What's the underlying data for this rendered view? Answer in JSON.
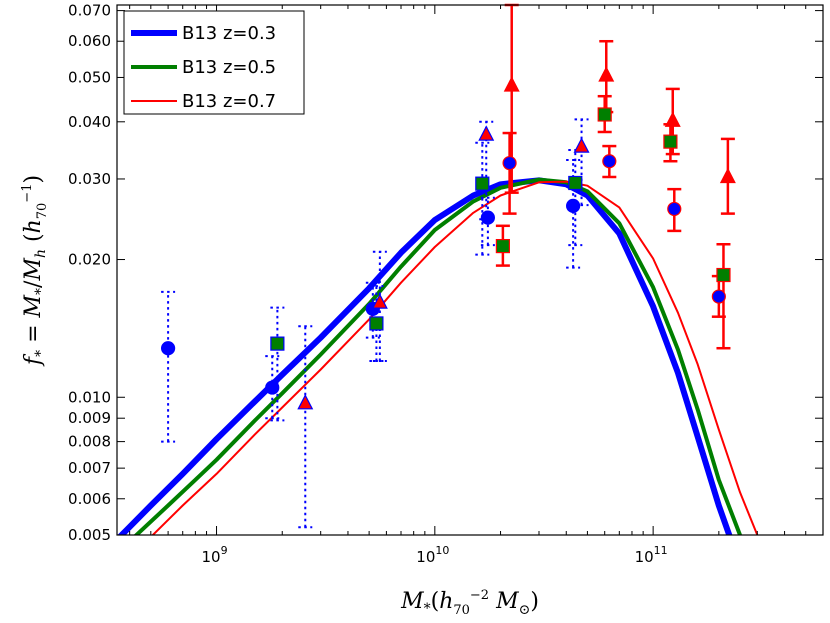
{
  "chart_data": {
    "type": "scatter",
    "title": "",
    "xlabel": "M_*(h_70^-2 M_⊙)",
    "ylabel": "f_* = M_*/M_h (h_70^-1)",
    "x_scale": "log",
    "y_scale": "log",
    "xlim": [
      350000000.0,
      600000000000.0
    ],
    "ylim": [
      0.005,
      0.072
    ],
    "x_ticks": [
      {
        "value": 1000000000.0,
        "base": "10",
        "exp": "9"
      },
      {
        "value": 10000000000.0,
        "base": "10",
        "exp": "10"
      },
      {
        "value": 100000000000.0,
        "base": "10",
        "exp": "11"
      }
    ],
    "y_ticks": [
      {
        "value": 0.005,
        "label": "0.005"
      },
      {
        "value": 0.006,
        "label": "0.006"
      },
      {
        "value": 0.007,
        "label": "0.007"
      },
      {
        "value": 0.008,
        "label": "0.008"
      },
      {
        "value": 0.009,
        "label": "0.009"
      },
      {
        "value": 0.01,
        "label": "0.010"
      },
      {
        "value": 0.02,
        "label": "0.020"
      },
      {
        "value": 0.03,
        "label": "0.030"
      },
      {
        "value": 0.04,
        "label": "0.040"
      },
      {
        "value": 0.05,
        "label": "0.050"
      },
      {
        "value": 0.06,
        "label": "0.060"
      },
      {
        "value": 0.07,
        "label": "0.070"
      }
    ],
    "legend": {
      "location": "upper-left",
      "entries": [
        {
          "label": "B13 z=0.3",
          "color": "#0000ff"
        },
        {
          "label": "B13 z=0.5",
          "color": "#007f00"
        },
        {
          "label": "B13 z=0.7",
          "color": "#ff0000"
        }
      ]
    },
    "model_curves": [
      {
        "name": "B13 z=0.3",
        "color": "#0000ff",
        "x": [
          360000000.0,
          500000000.0,
          700000000.0,
          1000000000.0,
          1500000000.0,
          2000000000.0,
          3000000000.0,
          5000000000.0,
          7000000000.0,
          10000000000.0,
          15000000000.0,
          20000000000.0,
          30000000000.0,
          40000000000.0,
          50000000000.0,
          70000000000.0,
          100000000000.0,
          130000000000.0,
          160000000000.0,
          200000000000.0,
          230000000000.0
        ],
        "y": [
          0.00495,
          0.0058,
          0.0068,
          0.0081,
          0.0098,
          0.0112,
          0.0135,
          0.0173,
          0.0207,
          0.0244,
          0.0276,
          0.0292,
          0.0298,
          0.0292,
          0.0276,
          0.0228,
          0.0158,
          0.0113,
          0.0082,
          0.0058,
          0.0048
        ]
      },
      {
        "name": "B13 z=0.5",
        "color": "#007f00",
        "x": [
          420000000.0,
          600000000.0,
          800000000.0,
          1000000000.0,
          1500000000.0,
          2000000000.0,
          3000000000.0,
          5000000000.0,
          7000000000.0,
          10000000000.0,
          15000000000.0,
          20000000000.0,
          30000000000.0,
          40000000000.0,
          50000000000.0,
          70000000000.0,
          100000000000.0,
          130000000000.0,
          160000000000.0,
          200000000000.0,
          250000000000.0,
          270000000000.0
        ],
        "y": [
          0.00495,
          0.0058,
          0.0066,
          0.0073,
          0.0089,
          0.0102,
          0.0124,
          0.016,
          0.0193,
          0.0232,
          0.0268,
          0.0287,
          0.0299,
          0.0295,
          0.0282,
          0.024,
          0.0174,
          0.0127,
          0.0094,
          0.0066,
          0.005,
          0.0046
        ]
      },
      {
        "name": "B13 z=0.7",
        "color": "#ff0000",
        "x": [
          500000000.0,
          700000000.0,
          1000000000.0,
          1500000000.0,
          2000000000.0,
          3000000000.0,
          5000000000.0,
          7000000000.0,
          10000000000.0,
          15000000000.0,
          20000000000.0,
          30000000000.0,
          40000000000.0,
          50000000000.0,
          70000000000.0,
          100000000000.0,
          130000000000.0,
          160000000000.0,
          200000000000.0,
          250000000000.0,
          300000000000.0,
          320000000000.0
        ],
        "y": [
          0.00495,
          0.0058,
          0.0068,
          0.0083,
          0.0095,
          0.0115,
          0.0148,
          0.0178,
          0.0213,
          0.0253,
          0.0276,
          0.0295,
          0.0296,
          0.029,
          0.026,
          0.0201,
          0.0153,
          0.0118,
          0.0085,
          0.0062,
          0.005,
          0.0046
        ]
      }
    ],
    "data_points": [
      {
        "marker": "circle",
        "face": "#0000ff",
        "edge": "#0000ff",
        "errstyle": "dotted",
        "errcolor": "#0000ff",
        "x": 600000000.0,
        "y": 0.0128,
        "ylo": 0.008,
        "yhi": 0.017
      },
      {
        "marker": "circle",
        "face": "#0000ff",
        "edge": "#0000ff",
        "errstyle": "dotted",
        "errcolor": "#0000ff",
        "x": 1800000000.0,
        "y": 0.0105,
        "ylo": 0.009,
        "yhi": 0.0123
      },
      {
        "marker": "square",
        "face": "#007f00",
        "edge": "#0000ff",
        "errstyle": "dotted",
        "errcolor": "#0000ff",
        "x": 1900000000.0,
        "y": 0.0131,
        "ylo": 0.0089,
        "yhi": 0.0157
      },
      {
        "marker": "triangle",
        "face": "#ff0000",
        "edge": "#0000ff",
        "errstyle": "dotted",
        "errcolor": "#0000ff",
        "x": 2550000000.0,
        "y": 0.0097,
        "ylo": 0.0052,
        "yhi": 0.0143
      },
      {
        "marker": "circle",
        "face": "#0000ff",
        "edge": "#0000ff",
        "errstyle": "dotted",
        "errcolor": "#0000ff",
        "x": 5200000000.0,
        "y": 0.0156,
        "ylo": 0.0135,
        "yhi": 0.0178
      },
      {
        "marker": "triangle",
        "face": "#ff0000",
        "edge": "#0000ff",
        "errstyle": "dotted",
        "errcolor": "#0000ff",
        "x": 5600000000.0,
        "y": 0.0161,
        "ylo": 0.012,
        "yhi": 0.0208
      },
      {
        "marker": "square",
        "face": "#007f00",
        "edge": "#0000ff",
        "errstyle": "dotted",
        "errcolor": "#0000ff",
        "x": 5400000000.0,
        "y": 0.0145,
        "ylo": 0.012,
        "yhi": 0.0175
      },
      {
        "marker": "square",
        "face": "#007f00",
        "edge": "#0000ff",
        "errstyle": "dotted",
        "errcolor": "#0000ff",
        "x": 16500000000.0,
        "y": 0.0293,
        "ylo": 0.0205,
        "yhi": 0.036
      },
      {
        "marker": "triangle",
        "face": "#ff0000",
        "edge": "#0000ff",
        "errstyle": "dotted",
        "errcolor": "#0000ff",
        "x": 17200000000.0,
        "y": 0.0375,
        "ylo": 0.0245,
        "yhi": 0.04
      },
      {
        "marker": "circle",
        "face": "#0000ff",
        "edge": "#0000ff",
        "errstyle": "dotted",
        "errcolor": "#0000ff",
        "x": 17500000000.0,
        "y": 0.0247,
        "ylo": 0.0215,
        "yhi": 0.0273
      },
      {
        "marker": "circle",
        "face": "#0000ff",
        "edge": "#0000ff",
        "errstyle": "dotted",
        "errcolor": "#0000ff",
        "x": 43000000000.0,
        "y": 0.0262,
        "ylo": 0.0192,
        "yhi": 0.033
      },
      {
        "marker": "square",
        "face": "#007f00",
        "edge": "#0000ff",
        "errstyle": "dotted",
        "errcolor": "#0000ff",
        "x": 44000000000.0,
        "y": 0.0294,
        "ylo": 0.0215,
        "yhi": 0.0347
      },
      {
        "marker": "triangle",
        "face": "#ff0000",
        "edge": "#0000ff",
        "errstyle": "dotted",
        "errcolor": "#0000ff",
        "x": 47000000000.0,
        "y": 0.0353,
        "ylo": 0.0263,
        "yhi": 0.0405
      },
      {
        "marker": "square",
        "face": "#007f00",
        "edge": "#ff0000",
        "errstyle": "solid",
        "errcolor": "#ff0000",
        "x": 20500000000.0,
        "y": 0.0214,
        "ylo": 0.0194,
        "yhi": 0.0237
      },
      {
        "marker": "circle",
        "face": "#0000ff",
        "edge": "#ff0000",
        "errstyle": "solid",
        "errcolor": "#ff0000",
        "x": 22000000000.0,
        "y": 0.0325,
        "ylo": 0.0252,
        "yhi": 0.0378
      },
      {
        "marker": "triangle",
        "face": "#ff0000",
        "edge": "#ff0000",
        "errstyle": "solid",
        "errcolor": "#ff0000",
        "x": 22500000000.0,
        "y": 0.048,
        "ylo": 0.028,
        "yhi": 0.072
      },
      {
        "marker": "square",
        "face": "#007f00",
        "edge": "#ff0000",
        "errstyle": "solid",
        "errcolor": "#ff0000",
        "x": 60000000000.0,
        "y": 0.0415,
        "ylo": 0.038,
        "yhi": 0.0455
      },
      {
        "marker": "triangle",
        "face": "#ff0000",
        "edge": "#ff0000",
        "errstyle": "solid",
        "errcolor": "#ff0000",
        "x": 61000000000.0,
        "y": 0.0505,
        "ylo": 0.042,
        "yhi": 0.06
      },
      {
        "marker": "circle",
        "face": "#0000ff",
        "edge": "#ff0000",
        "errstyle": "solid",
        "errcolor": "#ff0000",
        "x": 63000000000.0,
        "y": 0.0328,
        "ylo": 0.0303,
        "yhi": 0.0354
      },
      {
        "marker": "square",
        "face": "#007f00",
        "edge": "#ff0000",
        "errstyle": "solid",
        "errcolor": "#ff0000",
        "x": 120000000000.0,
        "y": 0.0362,
        "ylo": 0.0328,
        "yhi": 0.0395
      },
      {
        "marker": "triangle",
        "face": "#ff0000",
        "edge": "#ff0000",
        "errstyle": "solid",
        "errcolor": "#ff0000",
        "x": 123000000000.0,
        "y": 0.0402,
        "ylo": 0.034,
        "yhi": 0.0472
      },
      {
        "marker": "circle",
        "face": "#0000ff",
        "edge": "#ff0000",
        "errstyle": "solid",
        "errcolor": "#ff0000",
        "x": 125000000000.0,
        "y": 0.0258,
        "ylo": 0.0231,
        "yhi": 0.0285
      },
      {
        "marker": "circle",
        "face": "#0000ff",
        "edge": "#ff0000",
        "errstyle": "solid",
        "errcolor": "#ff0000",
        "x": 200000000000.0,
        "y": 0.0166,
        "ylo": 0.015,
        "yhi": 0.0184
      },
      {
        "marker": "square",
        "face": "#007f00",
        "edge": "#ff0000",
        "errstyle": "solid",
        "errcolor": "#ff0000",
        "x": 210000000000.0,
        "y": 0.0185,
        "ylo": 0.0128,
        "yhi": 0.0216
      },
      {
        "marker": "triangle",
        "face": "#ff0000",
        "edge": "#ff0000",
        "errstyle": "solid",
        "errcolor": "#ff0000",
        "x": 220000000000.0,
        "y": 0.0303,
        "ylo": 0.0252,
        "yhi": 0.0367
      }
    ]
  }
}
